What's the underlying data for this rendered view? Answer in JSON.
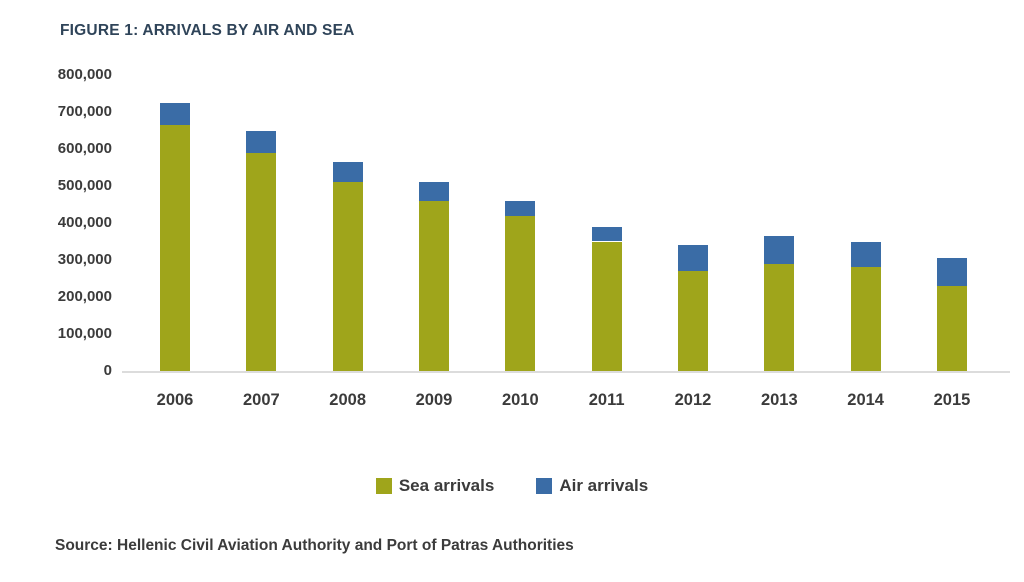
{
  "figure": {
    "title": "FIGURE 1: ARRIVALS BY AIR AND SEA",
    "source_note": "Source: Hellenic Civil Aviation Authority and Port of Patras Authorities"
  },
  "chart_data": {
    "type": "bar",
    "stacked": true,
    "title": "FIGURE 1: ARRIVALS BY AIR AND SEA",
    "categories": [
      "2006",
      "2007",
      "2008",
      "2009",
      "2010",
      "2011",
      "2012",
      "2013",
      "2014",
      "2015"
    ],
    "series": [
      {
        "name": "Sea arrivals",
        "color": "#9FA51B",
        "values": [
          665000,
          590000,
          510000,
          460000,
          420000,
          350000,
          270000,
          290000,
          280000,
          230000
        ]
      },
      {
        "name": "Air arrivals",
        "color": "#3A6CA6",
        "values": [
          60000,
          60000,
          55000,
          50000,
          40000,
          40000,
          70000,
          75000,
          70000,
          75000
        ]
      }
    ],
    "xlabel": "",
    "ylabel": "",
    "ylim": [
      0,
      800000
    ],
    "ytick_step": 100000,
    "ytick_labels": [
      "0",
      "100,000",
      "200,000",
      "300,000",
      "400,000",
      "500,000",
      "600,000",
      "700,000",
      "800,000"
    ],
    "grid": false,
    "legend_position": "bottom"
  },
  "colors": {
    "title_text": "#2F4459",
    "axis_text": "#3B3B3B",
    "axis_line": "#DCDCDC",
    "sea_arrivals": "#9FA51B",
    "air_arrivals": "#3A6CA6",
    "background": "#FFFFFF"
  }
}
